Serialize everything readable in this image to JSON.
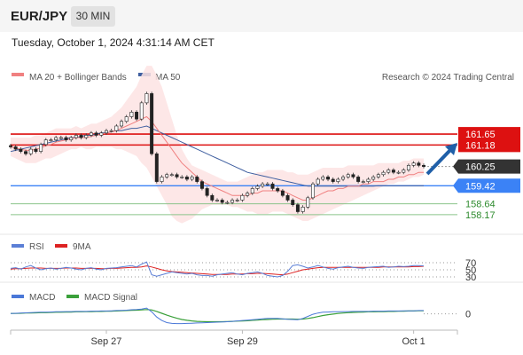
{
  "header": {
    "symbol": "EUR/JPY",
    "timeframe": "30 MIN",
    "datetime": "Tuesday, October 1, 2024 4:31:14 AM CET"
  },
  "legend": {
    "ma20": "MA 20 + Bollinger Bands",
    "ma50": "MA 50",
    "credit": "Research © 2024 Trading Central"
  },
  "colors": {
    "resistance": "#dd1111",
    "support": "#3b82f6",
    "target_line": "#8bc48b",
    "target_text": "#2e8b2e",
    "ma20": "#f08080",
    "ma50": "#3f5fa0",
    "bollinger_fill": "#fde3e3",
    "candle_up": "#2a8a3a",
    "candle_down": "#cc2222",
    "rsi": "#5b7fd6",
    "rsi_ma": "#dd2222",
    "macd": "#4a78d8",
    "macd_signal": "#3aa03a",
    "arrow": "#1f5fa8"
  },
  "chart_data": [
    {
      "type": "candlestick",
      "y_range": [
        157.4,
        163.8
      ],
      "x_ticks": [
        "Sep 27",
        "Sep 29",
        "Oct 1"
      ],
      "levels": [
        {
          "value": 161.65,
          "label": "161.65",
          "style": "resistance"
        },
        {
          "value": 161.18,
          "label": "161.18",
          "style": "resistance"
        },
        {
          "value": 160.25,
          "label": "160.25",
          "style": "current"
        },
        {
          "value": 159.42,
          "label": "159.42",
          "style": "support"
        },
        {
          "value": 158.64,
          "label": "158.64",
          "style": "target"
        },
        {
          "value": 158.17,
          "label": "158.17",
          "style": "target"
        }
      ],
      "close": [
        161.1,
        161.0,
        160.9,
        160.8,
        161.0,
        160.9,
        161.2,
        161.4,
        161.4,
        161.5,
        161.5,
        161.4,
        161.5,
        161.6,
        161.5,
        161.6,
        161.7,
        161.6,
        161.7,
        161.8,
        161.8,
        162.0,
        162.2,
        162.4,
        162.6,
        162.3,
        163.0,
        163.4,
        160.8,
        159.6,
        159.8,
        159.9,
        159.9,
        159.8,
        159.8,
        159.7,
        159.8,
        159.6,
        159.3,
        159.0,
        158.8,
        158.8,
        158.7,
        158.7,
        158.8,
        158.8,
        159.0,
        159.1,
        159.3,
        159.4,
        159.5,
        159.5,
        159.3,
        159.2,
        159.0,
        158.8,
        158.6,
        158.3,
        158.5,
        158.9,
        159.5,
        159.7,
        159.8,
        159.7,
        159.6,
        159.7,
        159.8,
        159.9,
        159.8,
        159.6,
        159.6,
        159.7,
        159.8,
        159.9,
        160.0,
        160.1,
        160.0,
        160.0,
        160.1,
        160.3,
        160.4,
        160.3,
        160.25
      ],
      "ma20": [
        161.1,
        161.05,
        161.0,
        160.95,
        160.95,
        161.0,
        161.05,
        161.15,
        161.2,
        161.3,
        161.35,
        161.4,
        161.45,
        161.5,
        161.5,
        161.5,
        161.55,
        161.6,
        161.65,
        161.7,
        161.75,
        161.8,
        161.9,
        162.0,
        162.1,
        162.2,
        162.3,
        162.4,
        162.2,
        161.9,
        161.6,
        161.3,
        161.0,
        160.7,
        160.4,
        160.2,
        160.0,
        159.8,
        159.6,
        159.5,
        159.4,
        159.3,
        159.2,
        159.1,
        159.0,
        159.0,
        159.0,
        159.0,
        159.1,
        159.1,
        159.2,
        159.2,
        159.2,
        159.2,
        159.2,
        159.1,
        159.0,
        158.9,
        158.8,
        158.8,
        158.9,
        159.0,
        159.1,
        159.2,
        159.2,
        159.3,
        159.3,
        159.4,
        159.4,
        159.4,
        159.5,
        159.5,
        159.6,
        159.6,
        159.6,
        159.7,
        159.7,
        159.8,
        159.8,
        159.9,
        159.9,
        160.0,
        160.0
      ],
      "ma50": [
        160.9,
        160.95,
        161.0,
        161.05,
        161.1,
        161.15,
        161.2,
        161.25,
        161.3,
        161.35,
        161.4,
        161.45,
        161.5,
        161.5,
        161.55,
        161.6,
        161.6,
        161.65,
        161.7,
        161.7,
        161.75,
        161.8,
        161.8,
        161.85,
        161.9,
        161.9,
        161.95,
        162.0,
        161.9,
        161.8,
        161.7,
        161.6,
        161.5,
        161.4,
        161.3,
        161.2,
        161.1,
        161.0,
        160.9,
        160.8,
        160.7,
        160.6,
        160.5,
        160.4,
        160.3,
        160.2,
        160.1,
        160.0,
        159.95,
        159.9,
        159.85,
        159.8,
        159.75,
        159.7,
        159.65,
        159.6,
        159.55,
        159.5,
        159.45,
        159.4,
        159.4,
        159.4,
        159.4,
        159.4,
        159.4,
        159.4,
        159.4,
        159.4,
        159.4,
        159.4,
        159.4,
        159.4,
        159.4,
        159.42,
        159.42,
        159.42,
        159.42,
        159.42,
        159.42,
        159.42,
        159.42,
        159.42,
        159.42
      ],
      "bb_upper": [
        161.5,
        161.5,
        161.5,
        161.5,
        161.5,
        161.6,
        161.6,
        161.7,
        161.8,
        161.9,
        161.9,
        161.9,
        161.9,
        162.0,
        161.9,
        162.0,
        162.1,
        162.1,
        162.2,
        162.3,
        162.4,
        162.6,
        162.8,
        163.1,
        163.4,
        163.7,
        164.2,
        164.6,
        164.6,
        164.2,
        163.7,
        163.0,
        162.3,
        161.6,
        161.0,
        160.6,
        160.3,
        160.2,
        160.1,
        160.0,
        159.9,
        159.8,
        159.7,
        159.6,
        159.6,
        159.6,
        159.7,
        159.8,
        159.9,
        160.0,
        160.0,
        160.1,
        160.1,
        160.1,
        160.1,
        160.0,
        160.0,
        159.9,
        159.9,
        159.9,
        160.0,
        160.1,
        160.2,
        160.2,
        160.2,
        160.2,
        160.2,
        160.3,
        160.3,
        160.3,
        160.3,
        160.3,
        160.3,
        160.4,
        160.4,
        160.4,
        160.4,
        160.4,
        160.5,
        160.5,
        160.6,
        160.6,
        160.6
      ],
      "bb_lower": [
        160.7,
        160.6,
        160.5,
        160.4,
        160.4,
        160.4,
        160.5,
        160.6,
        160.6,
        160.7,
        160.8,
        160.9,
        161.0,
        161.0,
        161.1,
        161.0,
        161.0,
        161.1,
        161.1,
        161.1,
        161.1,
        161.0,
        161.0,
        160.9,
        160.8,
        160.7,
        160.4,
        160.2,
        159.8,
        159.4,
        159.0,
        158.6,
        158.1,
        157.9,
        157.8,
        157.9,
        158.0,
        158.2,
        158.4,
        158.5,
        158.6,
        158.6,
        158.6,
        158.6,
        158.5,
        158.5,
        158.4,
        158.3,
        158.3,
        158.2,
        158.2,
        158.2,
        158.3,
        158.3,
        158.3,
        158.2,
        158.1,
        158.0,
        157.9,
        157.9,
        158.0,
        158.1,
        158.2,
        158.3,
        158.4,
        158.5,
        158.6,
        158.7,
        158.8,
        158.9,
        159.0,
        159.1,
        159.2,
        159.3,
        159.4,
        159.5,
        159.5,
        159.6,
        159.6,
        159.7,
        159.8,
        159.8,
        159.9
      ]
    },
    {
      "type": "line",
      "name": "RSI",
      "y_ticks": [
        70,
        50,
        30
      ],
      "y_range": [
        20,
        80
      ],
      "series": [
        {
          "name": "RSI",
          "values": [
            54,
            56,
            52,
            58,
            62,
            55,
            50,
            53,
            55,
            52,
            54,
            57,
            55,
            52,
            50,
            54,
            56,
            52,
            50,
            54,
            55,
            56,
            58,
            60,
            62,
            58,
            66,
            72,
            36,
            32,
            36,
            40,
            44,
            42,
            40,
            38,
            40,
            36,
            34,
            34,
            32,
            36,
            38,
            40,
            42,
            38,
            36,
            40,
            42,
            44,
            40,
            34,
            32,
            30,
            34,
            46,
            62,
            64,
            60,
            55,
            58,
            62,
            58,
            54,
            52,
            56,
            58,
            60,
            57,
            55,
            54,
            57,
            58,
            59,
            60,
            57,
            58,
            60,
            59,
            60,
            62,
            62,
            61
          ]
        },
        {
          "name": "9MA",
          "values": [
            52,
            53,
            53,
            54,
            55,
            55,
            55,
            54,
            54,
            54,
            54,
            55,
            55,
            55,
            54,
            54,
            54,
            54,
            53,
            53,
            54,
            54,
            55,
            56,
            57,
            57,
            58,
            61,
            58,
            54,
            50,
            47,
            45,
            44,
            43,
            42,
            41,
            40,
            39,
            38,
            37,
            37,
            37,
            37,
            38,
            38,
            38,
            39,
            39,
            40,
            40,
            39,
            38,
            37,
            36,
            38,
            42,
            46,
            50,
            52,
            54,
            56,
            57,
            57,
            57,
            57,
            57,
            57,
            57,
            57,
            57,
            57,
            57,
            57,
            58,
            58,
            58,
            58,
            58,
            58,
            59,
            59,
            60
          ]
        }
      ]
    },
    {
      "type": "line",
      "name": "MACD",
      "y_ticks": [
        0
      ],
      "y_range": [
        -0.7,
        0.5
      ],
      "series": [
        {
          "name": "MACD",
          "values": [
            0.02,
            0.03,
            0.04,
            0.05,
            0.06,
            0.07,
            0.08,
            0.08,
            0.09,
            0.1,
            0.1,
            0.11,
            0.11,
            0.12,
            0.12,
            0.12,
            0.13,
            0.13,
            0.14,
            0.14,
            0.15,
            0.16,
            0.17,
            0.18,
            0.2,
            0.21,
            0.23,
            0.28,
            0.1,
            -0.15,
            -0.32,
            -0.42,
            -0.46,
            -0.47,
            -0.47,
            -0.46,
            -0.45,
            -0.44,
            -0.43,
            -0.42,
            -0.41,
            -0.4,
            -0.39,
            -0.38,
            -0.36,
            -0.34,
            -0.32,
            -0.3,
            -0.28,
            -0.26,
            -0.24,
            -0.22,
            -0.22,
            -0.22,
            -0.24,
            -0.26,
            -0.27,
            -0.28,
            -0.22,
            -0.12,
            -0.02,
            0.04,
            0.08,
            0.09,
            0.1,
            0.1,
            0.11,
            0.11,
            0.12,
            0.12,
            0.12,
            0.12,
            0.13,
            0.13,
            0.13,
            0.14,
            0.14,
            0.14,
            0.15,
            0.15,
            0.15,
            0.16,
            0.16
          ]
        },
        {
          "name": "MACD Signal",
          "values": [
            0.02,
            0.02,
            0.03,
            0.04,
            0.04,
            0.05,
            0.06,
            0.06,
            0.07,
            0.08,
            0.08,
            0.09,
            0.09,
            0.1,
            0.1,
            0.11,
            0.11,
            0.12,
            0.12,
            0.13,
            0.13,
            0.14,
            0.15,
            0.16,
            0.17,
            0.18,
            0.19,
            0.21,
            0.19,
            0.12,
            0.03,
            -0.06,
            -0.14,
            -0.21,
            -0.27,
            -0.31,
            -0.34,
            -0.36,
            -0.37,
            -0.38,
            -0.38,
            -0.38,
            -0.38,
            -0.37,
            -0.36,
            -0.35,
            -0.34,
            -0.33,
            -0.31,
            -0.3,
            -0.28,
            -0.27,
            -0.26,
            -0.25,
            -0.25,
            -0.25,
            -0.25,
            -0.26,
            -0.25,
            -0.22,
            -0.18,
            -0.13,
            -0.08,
            -0.04,
            -0.01,
            0.02,
            0.04,
            0.06,
            0.07,
            0.08,
            0.09,
            0.1,
            0.1,
            0.11,
            0.11,
            0.12,
            0.12,
            0.13,
            0.13,
            0.14,
            0.14,
            0.15,
            0.15
          ]
        }
      ]
    }
  ]
}
